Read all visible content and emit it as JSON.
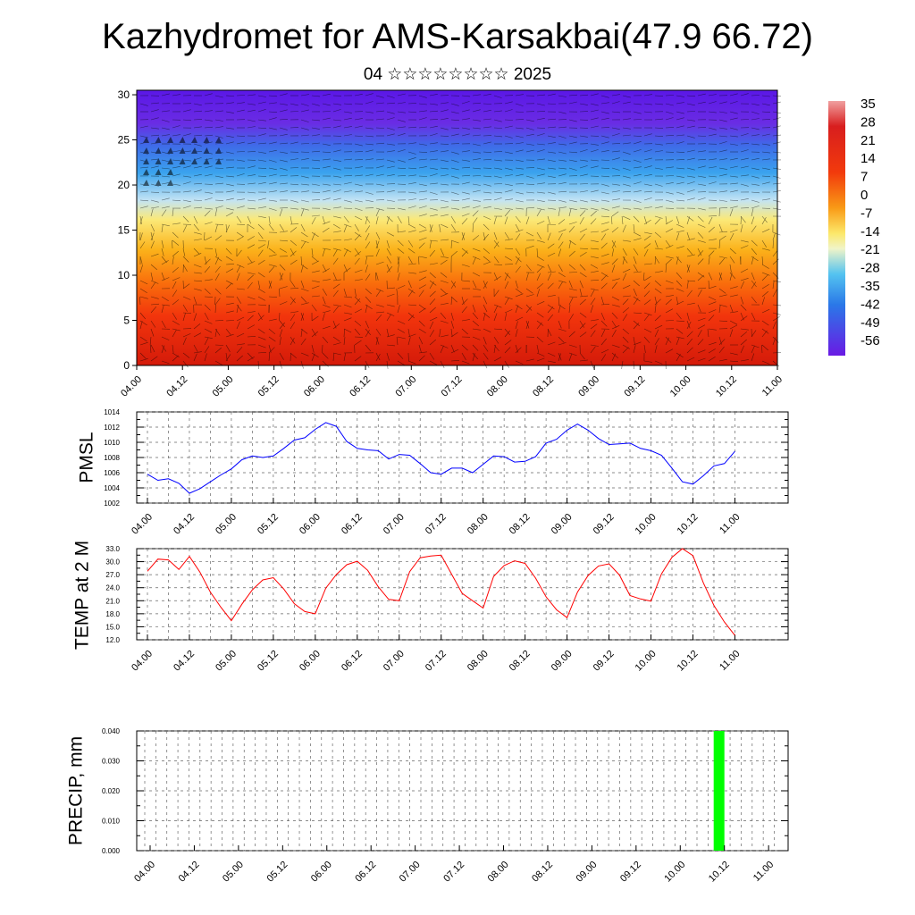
{
  "title": "Kazhydromet for AMS-Karsakbai(47.9 66.72)",
  "subtitle": "04 ☆☆☆☆☆☆☆☆ 2025",
  "time_ticks": [
    "04.00",
    "04.12",
    "05.00",
    "05.12",
    "06.00",
    "06.12",
    "07.00",
    "07.12",
    "08.00",
    "08.12",
    "09.00",
    "09.12",
    "10.00",
    "10.12",
    "11.00"
  ],
  "chart_data": [
    {
      "type": "heatmap",
      "name": "cross-section",
      "x": [
        "04.00",
        "04.12",
        "05.00",
        "05.12",
        "06.00",
        "06.12",
        "07.00",
        "07.12",
        "08.00",
        "08.12",
        "09.00",
        "09.12",
        "10.00",
        "10.12",
        "11.00"
      ],
      "y_ticks": [
        0,
        5,
        10,
        15,
        20,
        25,
        30
      ],
      "ylim": [
        0,
        30.5
      ],
      "colorbar": {
        "labels": [
          "35",
          "28",
          "21",
          "14",
          "7",
          "0",
          "-7",
          "-14",
          "-21",
          "-28",
          "-35",
          "-42",
          "-49",
          "-56"
        ],
        "range": [
          -60,
          37
        ]
      },
      "has_wind_barbs": true
    },
    {
      "type": "line",
      "ylabel": "PMSL",
      "ylim": [
        1002,
        1014
      ],
      "y_ticks": [
        "1002",
        "1004",
        "1006",
        "1008",
        "1010",
        "1012",
        "1014"
      ],
      "color": "#0000ff",
      "grid": true,
      "x_ticks": [
        "04.00",
        "04.12",
        "05.00",
        "05.12",
        "06.00",
        "06.12",
        "07.00",
        "07.12",
        "08.00",
        "08.12",
        "09.00",
        "09.12",
        "10.00",
        "10.12",
        "11.00"
      ],
      "values": [
        1005.8,
        1005.0,
        1005.2,
        1004.6,
        1003.3,
        1003.9,
        1004.8,
        1005.7,
        1006.5,
        1007.7,
        1008.2,
        1008.0,
        1008.2,
        1009.2,
        1010.3,
        1010.6,
        1011.7,
        1012.6,
        1012.1,
        1010.1,
        1009.2,
        1009.0,
        1008.9,
        1007.8,
        1008.4,
        1008.3,
        1007.2,
        1006.0,
        1005.8,
        1006.6,
        1006.6,
        1006.0,
        1007.1,
        1008.2,
        1008.1,
        1007.4,
        1007.5,
        1008.1,
        1009.9,
        1010.4,
        1011.6,
        1012.4,
        1011.6,
        1010.5,
        1009.7,
        1009.8,
        1009.9,
        1009.2,
        1008.9,
        1008.3,
        1006.6,
        1004.8,
        1004.5,
        1005.6,
        1006.9,
        1007.2,
        1008.8
      ]
    },
    {
      "type": "line",
      "ylabel": "TEMP at 2 M",
      "ylim": [
        12.0,
        33.0
      ],
      "y_ticks": [
        "12.0",
        "15.0",
        "18.0",
        "21.0",
        "24.0",
        "27.0",
        "30.0",
        "33.0"
      ],
      "color": "#ff0000",
      "grid": true,
      "x_ticks": [
        "04.00",
        "04.12",
        "05.00",
        "05.12",
        "06.00",
        "06.12",
        "07.00",
        "07.12",
        "08.00",
        "08.12",
        "09.00",
        "09.12",
        "10.00",
        "10.12",
        "11.00"
      ],
      "values": [
        27.8,
        30.6,
        30.4,
        28.2,
        31.2,
        27.6,
        23.0,
        19.5,
        16.4,
        20.2,
        23.5,
        25.8,
        26.3,
        23.7,
        20.3,
        18.5,
        18.0,
        23.9,
        27.0,
        29.3,
        30.1,
        28.0,
        24.2,
        21.3,
        21.0,
        27.7,
        30.9,
        31.3,
        31.5,
        27.1,
        22.7,
        21.0,
        19.3,
        26.6,
        29.1,
        30.2,
        29.6,
        26.2,
        21.9,
        18.9,
        17.1,
        23.0,
        26.8,
        29.0,
        29.5,
        26.9,
        22.2,
        21.4,
        20.9,
        27.2,
        31.0,
        33.0,
        31.4,
        25.1,
        19.9,
        16.1,
        13.0
      ]
    },
    {
      "type": "bar",
      "ylabel": "PRECIP, mm",
      "ylim": [
        0,
        0.04
      ],
      "y_ticks": [
        "0.000",
        "0.010",
        "0.020",
        "0.030",
        "0.040"
      ],
      "color": "#00ff00",
      "grid": true,
      "x_ticks": [
        "04.00",
        "04.12",
        "05.00",
        "05.12",
        "06.00",
        "06.12",
        "07.00",
        "07.12",
        "08.00",
        "08.12",
        "09.00",
        "09.12",
        "10.00",
        "10.12",
        "11.00"
      ],
      "bars": [
        {
          "x_step": 52,
          "value": 0.04
        }
      ]
    }
  ]
}
